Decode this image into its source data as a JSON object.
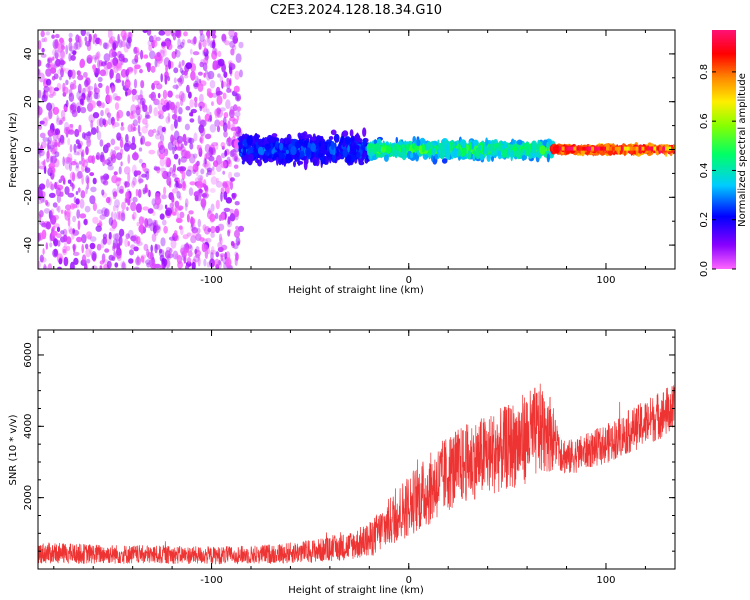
{
  "figure_title": "C2E3.2024.128.18.34.G10",
  "chart_data": [
    {
      "type": "heatmap",
      "xlabel": "Height of straight line (km)",
      "ylabel": "Frequency (Hz)",
      "xlim": [
        -188,
        135
      ],
      "ylim": [
        -50,
        50
      ],
      "xticks": [
        -100,
        0,
        100
      ],
      "yticks": [
        -40,
        -20,
        0,
        20,
        40
      ],
      "colorbar": {
        "label": "Normalized spectral amplitude",
        "range": [
          0.0,
          0.97
        ],
        "ticks": [
          0.0,
          0.2,
          0.4,
          0.6,
          0.8
        ],
        "colormap": [
          "#ff66ff",
          "#8800ff",
          "#0000ff",
          "#00ccff",
          "#00ff44",
          "#aaff00",
          "#ffee00",
          "#ff8800",
          "#ff0000",
          "#ff1177"
        ]
      },
      "regions": [
        {
          "x_range": [
            -188,
            -85
          ],
          "description_values": {
            "amplitude": [
              0.0,
              0.1
            ],
            "freq_spread": [
              -50,
              50
            ]
          }
        },
        {
          "x_range": [
            -85,
            -20
          ],
          "description_values": {
            "amplitude": [
              0.1,
              0.3
            ],
            "center_freq": 0,
            "freq_spread": [
              -10,
              10
            ]
          }
        },
        {
          "x_range": [
            -20,
            73
          ],
          "description_values": {
            "amplitude": [
              0.2,
              0.5
            ],
            "center_freq": 0,
            "freq_spread": [
              -6,
              6
            ]
          }
        },
        {
          "x_range": [
            73,
            135
          ],
          "description_values": {
            "amplitude": [
              0.6,
              0.97
            ],
            "center_freq": 0,
            "freq_spread": [
              -2,
              2
            ]
          }
        }
      ]
    },
    {
      "type": "line",
      "xlabel": "Height of straight line (km)",
      "ylabel": "SNR (10 * v/v)",
      "xlim": [
        -188,
        135
      ],
      "ylim": [
        0,
        6700
      ],
      "xticks": [
        -100,
        0,
        100
      ],
      "yticks": [
        2000,
        4000,
        6000
      ],
      "series": [
        {
          "color": "#ee3333",
          "x": [
            -188,
            -160,
            -130,
            -100,
            -80,
            -60,
            -40,
            -30,
            -20,
            -10,
            0,
            10,
            20,
            30,
            40,
            50,
            60,
            70,
            75,
            80,
            90,
            100,
            110,
            120,
            130,
            135
          ],
          "y": [
            450,
            420,
            400,
            380,
            400,
            450,
            550,
            650,
            800,
            1300,
            1800,
            2200,
            2700,
            3000,
            3200,
            3400,
            3700,
            4000,
            3500,
            3100,
            3300,
            3500,
            3800,
            4100,
            4400,
            4500
          ],
          "noise_amplitude": [
            300,
            280,
            260,
            250,
            260,
            300,
            350,
            400,
            500,
            700,
            900,
            1000,
            1100,
            1100,
            1150,
            1200,
            1300,
            1300,
            700,
            500,
            500,
            550,
            600,
            650,
            700,
            700
          ]
        }
      ]
    }
  ]
}
